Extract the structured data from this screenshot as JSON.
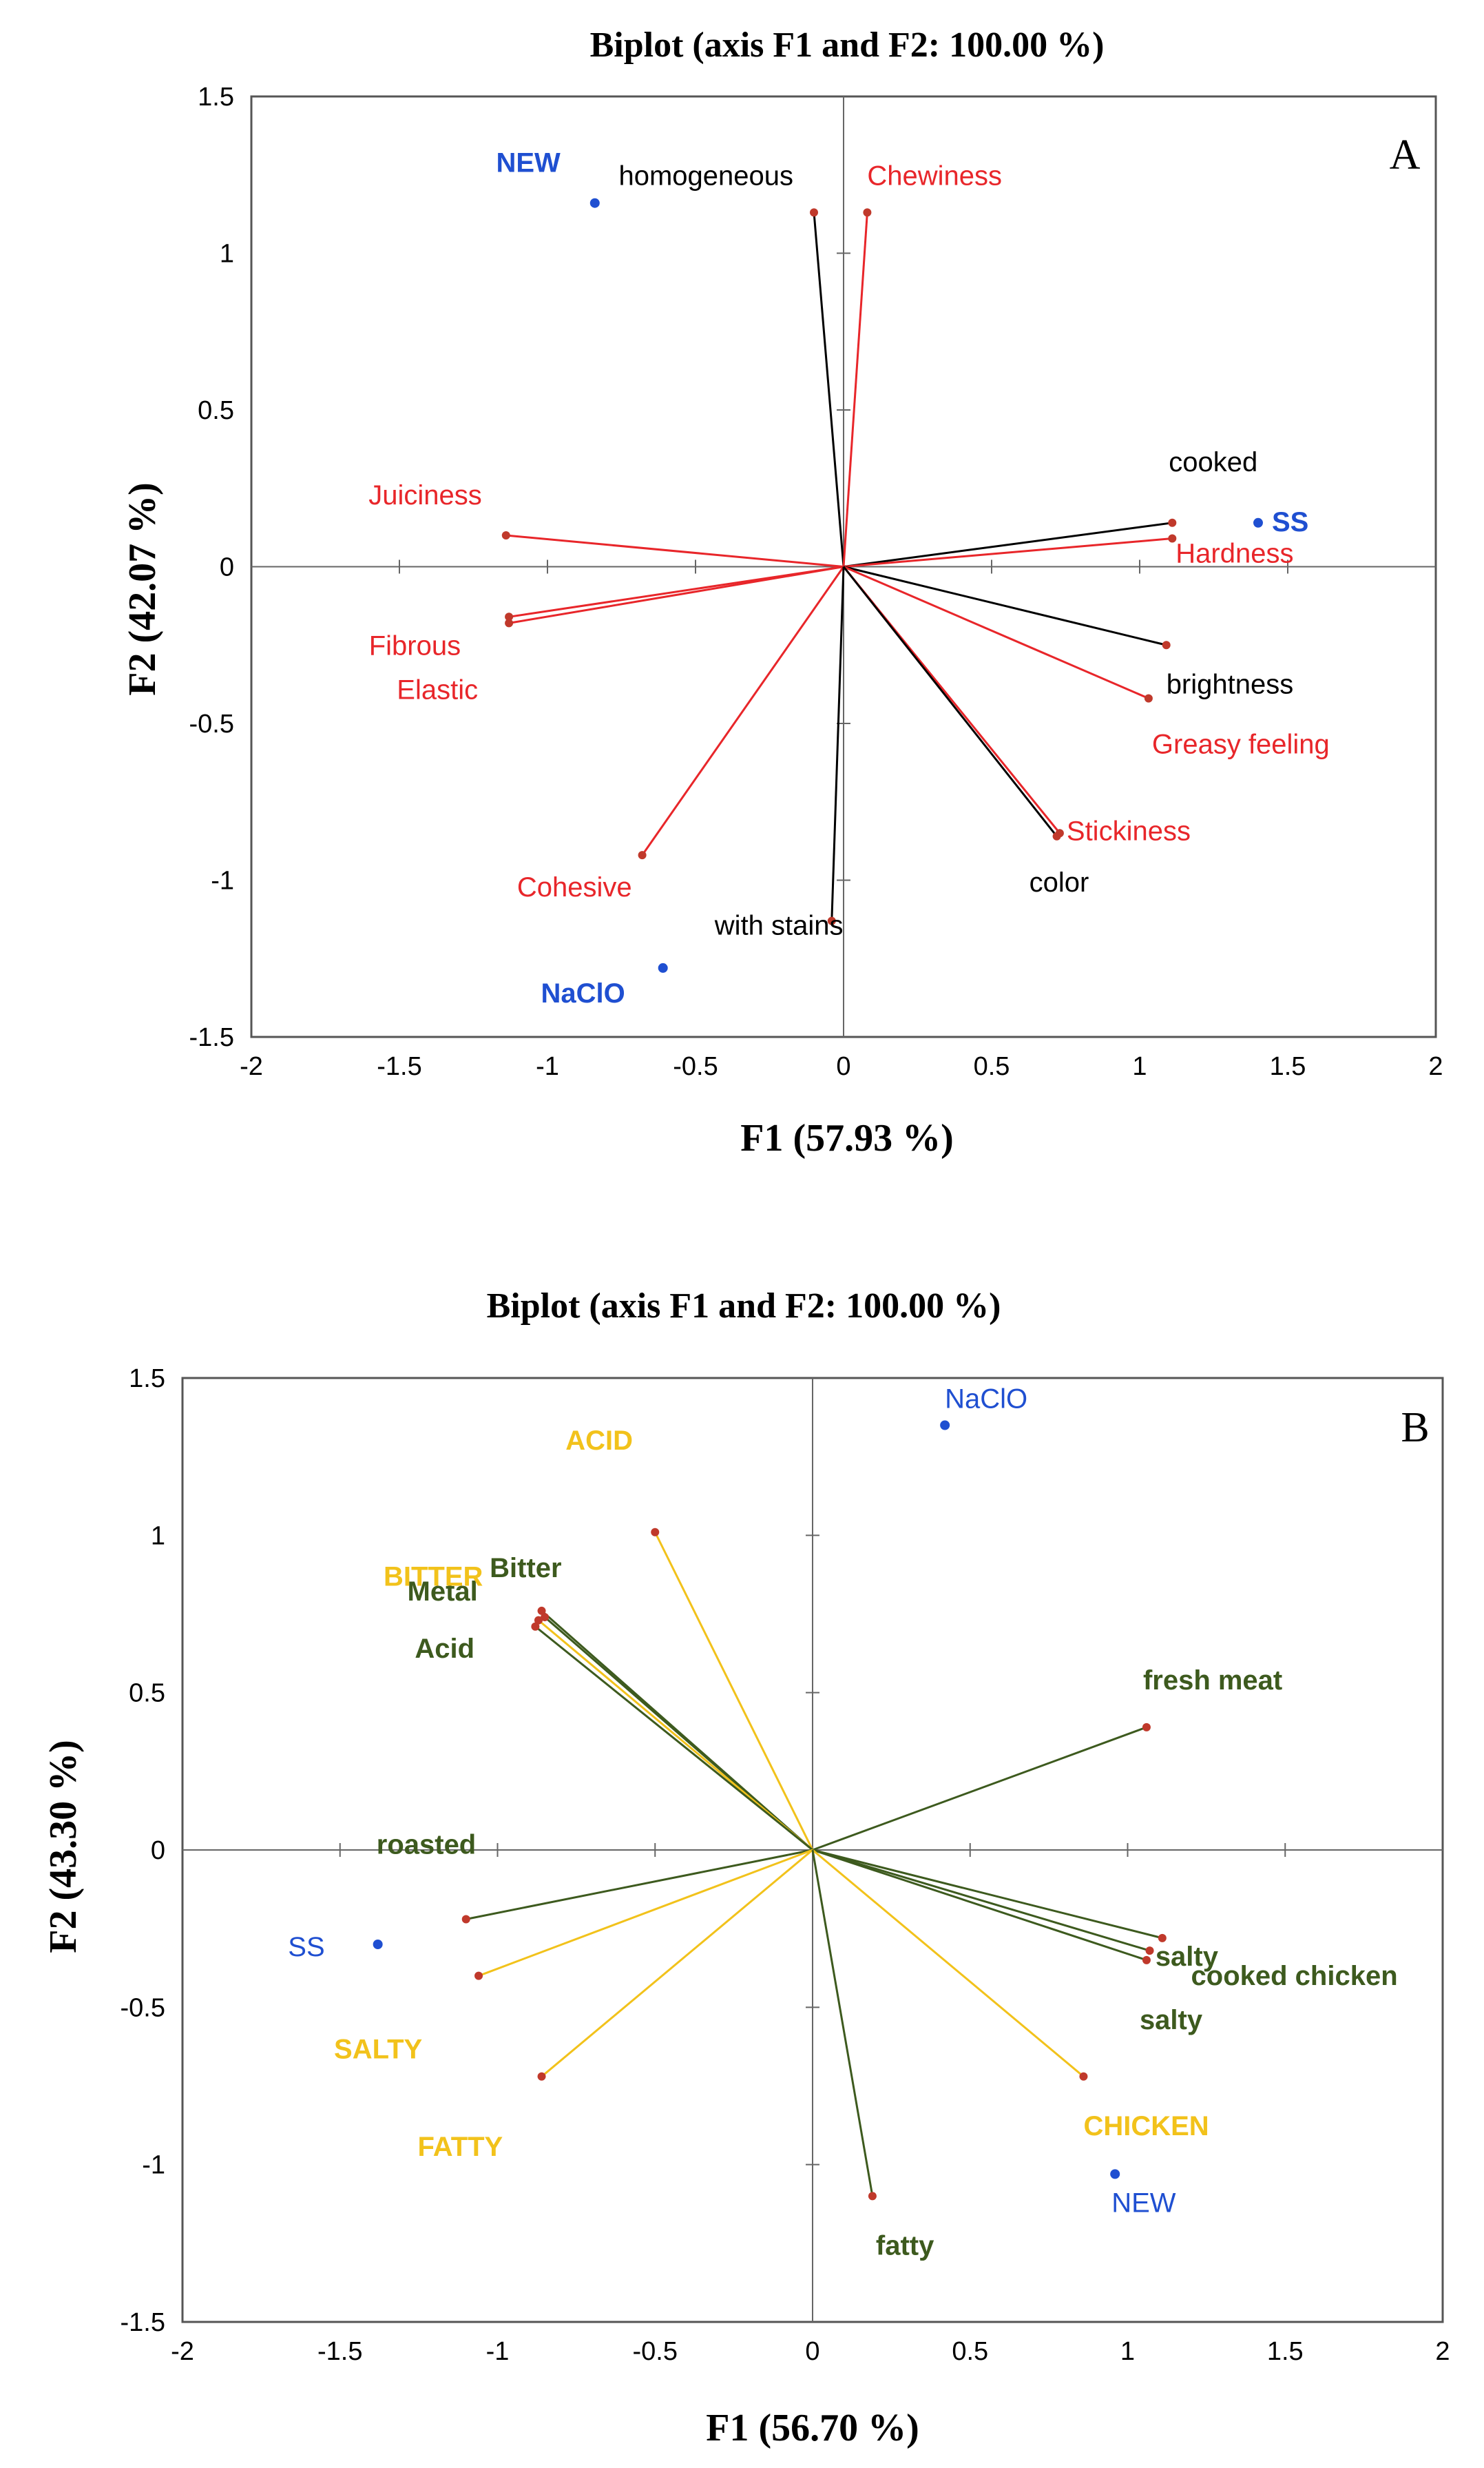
{
  "colors": {
    "red": "#e8262a",
    "black": "#000000",
    "blue": "#1f4fd1",
    "dark_green": "#3d5a1e",
    "yellow": "#f2c21b",
    "point_red": "#c0392b"
  },
  "chart_data": [
    {
      "type": "scatter",
      "subtype": "biplot",
      "panel": "A",
      "title": "Biplot (axis F1 and F2: 100.00 %)",
      "xlabel": "F1 (57.93 %)",
      "ylabel": "F2 (42.07 %)",
      "xlim": [
        -2,
        2
      ],
      "ylim": [
        -1.5,
        1.5
      ],
      "xticks": [
        "-2",
        "-1.5",
        "-1",
        "-0.5",
        "0",
        "0.5",
        "1",
        "1.5",
        "2"
      ],
      "yticks": [
        "1.5",
        "1",
        "0.5",
        "0",
        "-0.5",
        "-1",
        "-1.5"
      ],
      "vectors": [
        {
          "label": "homogeneous",
          "x": -0.1,
          "y": 1.13,
          "color": "black"
        },
        {
          "label": "Chewiness",
          "x": 0.08,
          "y": 1.13,
          "color": "red"
        },
        {
          "label": "Juiciness",
          "x": -1.14,
          "y": 0.1,
          "color": "red"
        },
        {
          "label": "Fibrous",
          "x": -1.13,
          "y": -0.16,
          "color": "red"
        },
        {
          "label": "Elastic",
          "x": -1.13,
          "y": -0.18,
          "color": "red"
        },
        {
          "label": "Cohesive",
          "x": -0.68,
          "y": -0.92,
          "color": "red"
        },
        {
          "label": "with stains",
          "x": -0.04,
          "y": -1.13,
          "color": "black"
        },
        {
          "label": "cooked",
          "x": 1.11,
          "y": 0.14,
          "color": "black"
        },
        {
          "label": "Hardness",
          "x": 1.11,
          "y": 0.09,
          "color": "red"
        },
        {
          "label": "brightness",
          "x": 1.09,
          "y": -0.25,
          "color": "black"
        },
        {
          "label": "Greasy feeling",
          "x": 1.03,
          "y": -0.42,
          "color": "red"
        },
        {
          "label": "Stickiness",
          "x": 0.73,
          "y": -0.85,
          "color": "red"
        },
        {
          "label": "color",
          "x": 0.72,
          "y": -0.86,
          "color": "black"
        }
      ],
      "observations": [
        {
          "label": "NEW",
          "x": -0.84,
          "y": 1.16
        },
        {
          "label": "SS",
          "x": 1.4,
          "y": 0.14
        },
        {
          "label": "NaClO",
          "x": -0.61,
          "y": -1.28
        }
      ]
    },
    {
      "type": "scatter",
      "subtype": "biplot",
      "panel": "B",
      "title": "Biplot (axis F1 and F2: 100.00 %)",
      "xlabel": "F1 (56.70 %)",
      "ylabel": "F2 (43.30 %)",
      "xlim": [
        -2,
        2
      ],
      "ylim": [
        -1.5,
        1.5
      ],
      "xticks": [
        "-2",
        "-1.5",
        "-1",
        "-0.5",
        "0",
        "0.5",
        "1",
        "1.5",
        "2"
      ],
      "yticks": [
        "1.5",
        "1",
        "0.5",
        "0",
        "-0.5",
        "-1",
        "-1.5"
      ],
      "vectors": [
        {
          "label": "ACID",
          "x": -0.5,
          "y": 1.01,
          "color": "yellow"
        },
        {
          "label": "Metal",
          "x": -0.86,
          "y": 0.76,
          "color": "dark_green"
        },
        {
          "label": "Bitter",
          "x": -0.85,
          "y": 0.74,
          "color": "dark_green"
        },
        {
          "label": "BITTER",
          "x": -0.87,
          "y": 0.73,
          "color": "yellow"
        },
        {
          "label": "Acid",
          "x": -0.88,
          "y": 0.71,
          "color": "dark_green"
        },
        {
          "label": "fresh meat",
          "x": 1.06,
          "y": 0.39,
          "color": "dark_green"
        },
        {
          "label": "roasted",
          "x": -1.1,
          "y": -0.22,
          "color": "dark_green"
        },
        {
          "label": "SALTY",
          "x": -1.06,
          "y": -0.4,
          "color": "yellow"
        },
        {
          "label": "FATTY",
          "x": -0.86,
          "y": -0.72,
          "color": "yellow"
        },
        {
          "label": "salty",
          "x": 1.11,
          "y": -0.28,
          "color": "dark_green"
        },
        {
          "label": "cooked chicken",
          "x": 1.07,
          "y": -0.32,
          "color": "dark_green"
        },
        {
          "label": "salty",
          "x": 1.06,
          "y": -0.35,
          "color": "dark_green"
        },
        {
          "label": "CHICKEN",
          "x": 0.86,
          "y": -0.72,
          "color": "yellow"
        },
        {
          "label": "fatty",
          "x": 0.19,
          "y": -1.1,
          "color": "dark_green"
        }
      ],
      "observations": [
        {
          "label": "NaClO",
          "x": 0.42,
          "y": 1.35
        },
        {
          "label": "SS",
          "x": -1.38,
          "y": -0.3
        },
        {
          "label": "NEW",
          "x": 0.96,
          "y": -1.03
        }
      ]
    }
  ]
}
